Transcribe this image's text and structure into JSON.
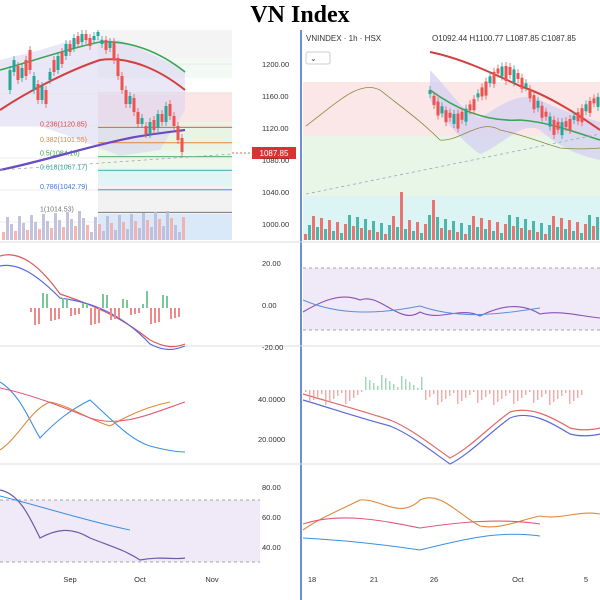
{
  "title": "VN Index",
  "chart_data": [
    {
      "type": "line",
      "name": "left-price-pane",
      "x_ticks": [
        "Sep",
        "Oct",
        "Nov"
      ],
      "y_ticks": [
        1200.0,
        1160.0,
        1120.0,
        1080.0,
        1040.0,
        1000.0
      ],
      "last_price": "1087.85",
      "fib_levels": [
        {
          "label": "0.236(1120.85)",
          "value": 1120.85,
          "color": "#e04545"
        },
        {
          "label": "0.382(1101.55)",
          "value": 1101.55,
          "color": "#e0883a"
        },
        {
          "label": "0.5(1084.16)",
          "value": 1084.16,
          "color": "#3aa655"
        },
        {
          "label": "0.618(1067.17)",
          "value": 1067.17,
          "color": "#2fa6a0"
        },
        {
          "label": "0.786(1042.79)",
          "value": 1042.79,
          "color": "#3a7bd5"
        },
        {
          "label": "1(1014.53)",
          "value": 1014.53,
          "color": "#777777"
        }
      ]
    },
    {
      "type": "line",
      "name": "right-price-pane",
      "header": "VNINDEX · 1h · HSX",
      "ohlc": "O1092.44 H1100.77 L1087.85 C1087.85",
      "x_ticks": [
        "18",
        "21",
        "26",
        "Oct",
        "5"
      ]
    },
    {
      "type": "line",
      "name": "oscillator-2",
      "y_ticks": [
        "20.00",
        "0.00",
        "-20.00"
      ]
    },
    {
      "type": "line",
      "name": "oscillator-3",
      "y_ticks": [
        "40.0000",
        "20.0000"
      ]
    },
    {
      "type": "line",
      "name": "oscillator-4",
      "y_ticks": [
        "80.00",
        "60.00",
        "40.00"
      ]
    }
  ],
  "colors": {
    "up": "#26a69a",
    "down": "#ef5350",
    "accent": "#3a68c9"
  }
}
